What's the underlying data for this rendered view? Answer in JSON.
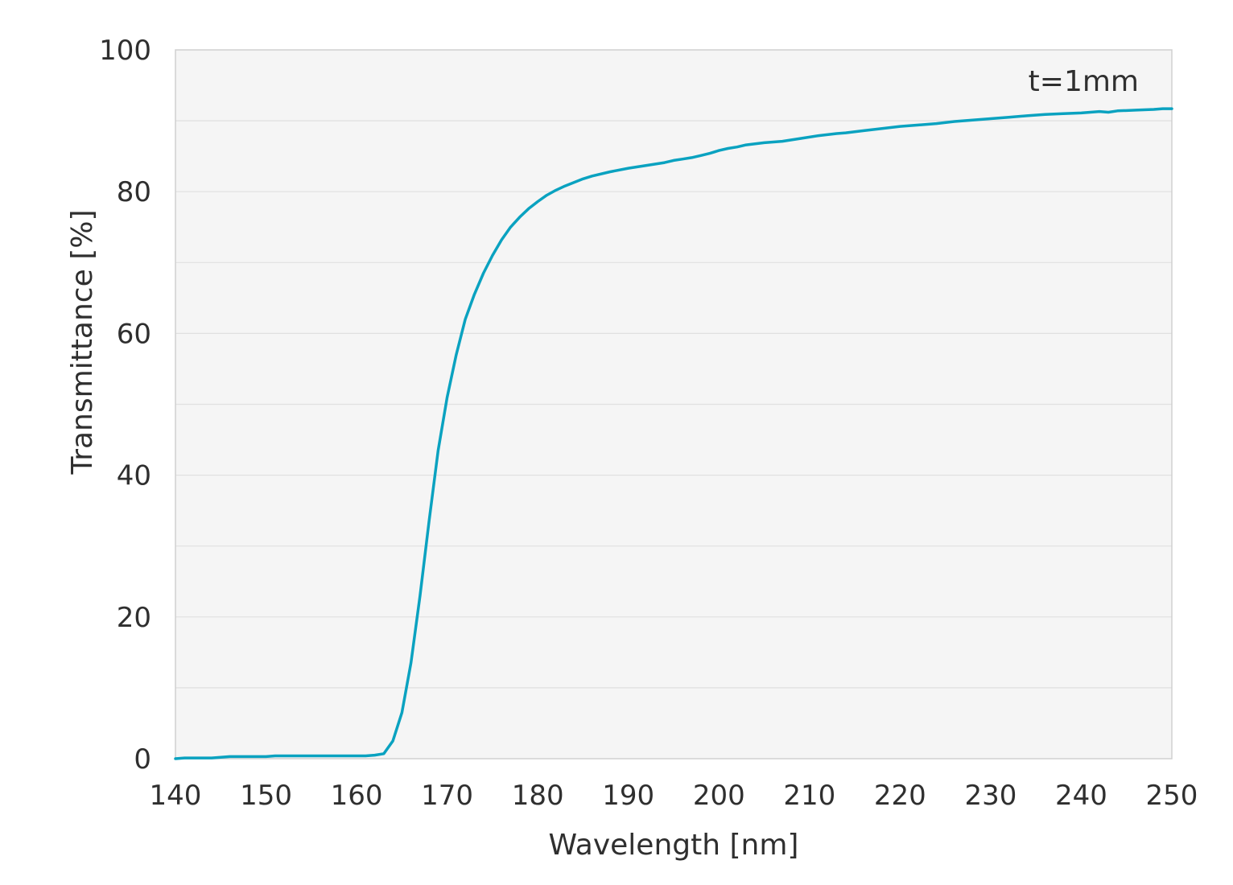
{
  "chart_data": {
    "type": "line",
    "xlabel": "Wavelength [nm]",
    "ylabel": "Transmittance [%]",
    "annotation": "t=1mm",
    "xlim": [
      140,
      250
    ],
    "ylim": [
      0,
      100
    ],
    "x_ticks": [
      140,
      150,
      160,
      170,
      180,
      190,
      200,
      210,
      220,
      230,
      240,
      250
    ],
    "y_ticks": [
      0,
      20,
      40,
      60,
      80,
      100
    ],
    "y_minor_gridlines": [
      10,
      30,
      50,
      70,
      90
    ],
    "grid": true,
    "colors": {
      "series": "#0aa2c0",
      "plot_background": "#f5f5f5",
      "gridline": "#e0e0e0",
      "frame": "#d0d0d0"
    },
    "series": [
      {
        "x": [
          140,
          141,
          142,
          143,
          144,
          145,
          146,
          148,
          150,
          151,
          153,
          155,
          157,
          159,
          161,
          162,
          163,
          164,
          165,
          166,
          167,
          168,
          169,
          170,
          171,
          172,
          173,
          174,
          175,
          176,
          177,
          178,
          179,
          180,
          181,
          182,
          183,
          184,
          185,
          186,
          188,
          190,
          192,
          194,
          195,
          196,
          197,
          198,
          199,
          200,
          201,
          202,
          203,
          205,
          207,
          209,
          211,
          213,
          214,
          216,
          218,
          220,
          221,
          222,
          224,
          226,
          228,
          230,
          232,
          234,
          236,
          238,
          240,
          241,
          242,
          243,
          244,
          246,
          248,
          249,
          250
        ],
        "y": [
          0,
          0.1,
          0.1,
          0.1,
          0.1,
          0.2,
          0.3,
          0.3,
          0.3,
          0.4,
          0.4,
          0.4,
          0.4,
          0.4,
          0.4,
          0.5,
          0.7,
          2.5,
          6.5,
          13.5,
          23,
          33.5,
          43.5,
          51,
          57,
          62,
          65.5,
          68.5,
          71,
          73.2,
          75,
          76.4,
          77.6,
          78.6,
          79.5,
          80.2,
          80.8,
          81.3,
          81.8,
          82.2,
          82.8,
          83.3,
          83.7,
          84.1,
          84.4,
          84.6,
          84.8,
          85.1,
          85.4,
          85.8,
          86.1,
          86.3,
          86.6,
          86.9,
          87.1,
          87.5,
          87.9,
          88.2,
          88.3,
          88.6,
          88.9,
          89.2,
          89.3,
          89.4,
          89.6,
          89.9,
          90.1,
          90.3,
          90.5,
          90.7,
          90.9,
          91.0,
          91.1,
          91.2,
          91.3,
          91.2,
          91.4,
          91.5,
          91.6,
          91.7,
          91.7
        ]
      }
    ]
  }
}
